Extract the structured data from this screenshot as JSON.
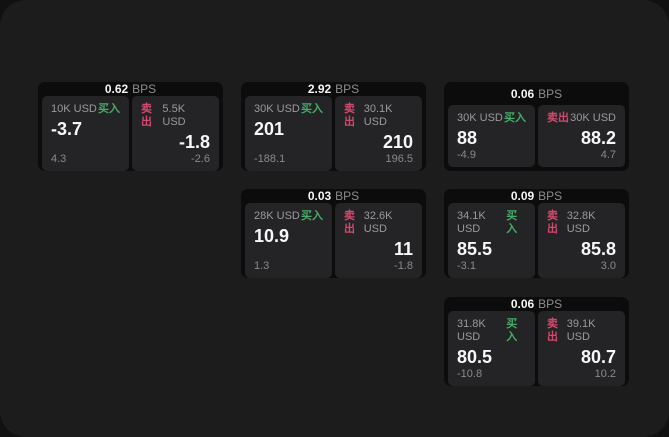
{
  "labels": {
    "buy": "买入",
    "sell": "卖出",
    "bps": "BPS"
  },
  "colors": {
    "buy_green": "#46ab66",
    "sell_red": "#d5486e",
    "screen_bg": "#1c1c1d",
    "card_bg": "#0c0c0d",
    "panel_bg": "#242426"
  },
  "cards": [
    {
      "row": 0,
      "col": 0,
      "bps": "0.62",
      "buy": {
        "amount": "10K USD",
        "price": "-3.7",
        "delta": "4.3"
      },
      "sell": {
        "amount": "5.5K USD",
        "price": "-1.8",
        "delta": "-2.6"
      }
    },
    {
      "row": 0,
      "col": 1,
      "bps": "2.92",
      "buy": {
        "amount": "30K USD",
        "price": "201",
        "delta": "-188.1"
      },
      "sell": {
        "amount": "30.1K USD",
        "price": "210",
        "delta": "196.5"
      }
    },
    {
      "row": 0,
      "col": 2,
      "bps": "0.06",
      "buy": {
        "amount": "30K USD",
        "price": "88",
        "delta": "-4.9"
      },
      "sell": {
        "amount": "30K USD",
        "price": "88.2",
        "delta": "4.7"
      }
    },
    {
      "row": 1,
      "col": 1,
      "bps": "0.03",
      "buy": {
        "amount": "28K USD",
        "price": "10.9",
        "delta": "1.3"
      },
      "sell": {
        "amount": "32.6K USD",
        "price": "11",
        "delta": "-1.8"
      }
    },
    {
      "row": 1,
      "col": 2,
      "bps": "0.09",
      "buy": {
        "amount": "34.1K USD",
        "price": "85.5",
        "delta": "-3.1"
      },
      "sell": {
        "amount": "32.8K USD",
        "price": "85.8",
        "delta": "3.0"
      }
    },
    {
      "row": 2,
      "col": 2,
      "bps": "0.06",
      "buy": {
        "amount": "31.8K USD",
        "price": "80.5",
        "delta": "-10.8"
      },
      "sell": {
        "amount": "39.1K USD",
        "price": "80.7",
        "delta": "10.2"
      }
    }
  ]
}
